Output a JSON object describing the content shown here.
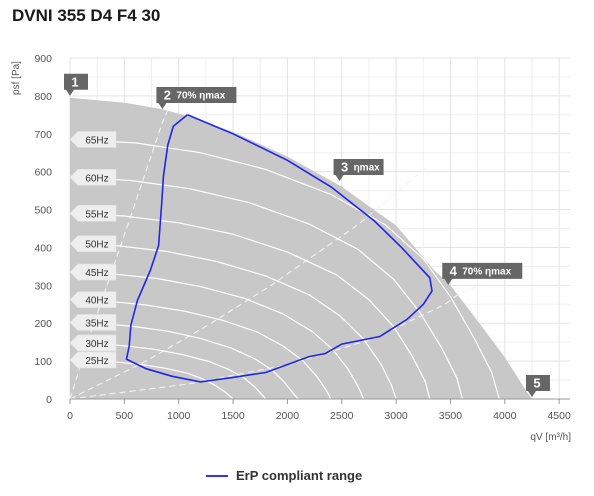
{
  "title": "DVNI 355 D4 F4 30",
  "legend_label": "ErP compliant range",
  "colors": {
    "envelope": "#c8c8c8",
    "grid": "#e3e3e3",
    "frequency_curves": "#ffffff",
    "efficiency_lines": "#f2f2f2",
    "erp": "#2424e6",
    "point_label": "#666666"
  },
  "chart_data": {
    "type": "line",
    "xlabel": "qV [m³/h]",
    "ylabel": "psf [Pa]",
    "xlim": [
      0,
      4600
    ],
    "ylim": [
      0,
      900
    ],
    "xticks": [
      "0",
      "500",
      "1000",
      "1500",
      "2000",
      "2500",
      "3000",
      "3500",
      "4000",
      "4500"
    ],
    "yticks": [
      "0",
      "100",
      "200",
      "300",
      "400",
      "500",
      "600",
      "700",
      "800",
      "900"
    ],
    "grid": true,
    "legend_position": "bottom-center",
    "envelope_top": [
      [
        0,
        795
      ],
      [
        500,
        782
      ],
      [
        850,
        765
      ],
      [
        1100,
        745
      ],
      [
        1500,
        705
      ],
      [
        2000,
        640
      ],
      [
        2500,
        560
      ],
      [
        3000,
        458
      ],
      [
        3350,
        340
      ],
      [
        3500,
        300
      ],
      [
        3700,
        225
      ],
      [
        4000,
        110
      ],
      [
        4200,
        20
      ],
      [
        4250,
        0
      ]
    ],
    "frequency_curves": [
      {
        "label": "65Hz",
        "values": [
          [
            0,
            685
          ],
          [
            600,
            676
          ],
          [
            1200,
            650
          ],
          [
            1800,
            606
          ],
          [
            2400,
            540
          ],
          [
            2900,
            460
          ],
          [
            3250,
            370
          ],
          [
            3500,
            270
          ],
          [
            3720,
            160
          ],
          [
            3880,
            70
          ],
          [
            3950,
            0
          ]
        ]
      },
      {
        "label": "60Hz",
        "values": [
          [
            0,
            585
          ],
          [
            550,
            577
          ],
          [
            1100,
            555
          ],
          [
            1650,
            518
          ],
          [
            2200,
            462
          ],
          [
            2650,
            395
          ],
          [
            2980,
            315
          ],
          [
            3220,
            228
          ],
          [
            3420,
            135
          ],
          [
            3560,
            55
          ],
          [
            3610,
            0
          ]
        ]
      },
      {
        "label": "55Hz",
        "values": [
          [
            0,
            490
          ],
          [
            500,
            483
          ],
          [
            1000,
            465
          ],
          [
            1500,
            435
          ],
          [
            2000,
            388
          ],
          [
            2450,
            328
          ],
          [
            2750,
            262
          ],
          [
            2980,
            190
          ],
          [
            3150,
            112
          ],
          [
            3270,
            45
          ],
          [
            3310,
            0
          ]
        ]
      },
      {
        "label": "50Hz",
        "values": [
          [
            0,
            410
          ],
          [
            450,
            404
          ],
          [
            900,
            389
          ],
          [
            1350,
            363
          ],
          [
            1800,
            325
          ],
          [
            2200,
            275
          ],
          [
            2480,
            220
          ],
          [
            2700,
            158
          ],
          [
            2860,
            92
          ],
          [
            2960,
            35
          ],
          [
            3000,
            0
          ]
        ]
      },
      {
        "label": "45Hz",
        "values": [
          [
            0,
            335
          ],
          [
            400,
            330
          ],
          [
            800,
            318
          ],
          [
            1200,
            297
          ],
          [
            1600,
            266
          ],
          [
            1950,
            226
          ],
          [
            2230,
            178
          ],
          [
            2420,
            130
          ],
          [
            2560,
            78
          ],
          [
            2660,
            28
          ],
          [
            2700,
            0
          ]
        ]
      },
      {
        "label": "40Hz",
        "values": [
          [
            0,
            262
          ],
          [
            350,
            258
          ],
          [
            700,
            248
          ],
          [
            1050,
            232
          ],
          [
            1400,
            208
          ],
          [
            1720,
            177
          ],
          [
            1960,
            140
          ],
          [
            2140,
            102
          ],
          [
            2270,
            60
          ],
          [
            2360,
            22
          ],
          [
            2400,
            0
          ]
        ]
      },
      {
        "label": "35Hz",
        "values": [
          [
            0,
            202
          ],
          [
            300,
            199
          ],
          [
            600,
            191
          ],
          [
            900,
            179
          ],
          [
            1200,
            160
          ],
          [
            1480,
            135
          ],
          [
            1700,
            106
          ],
          [
            1860,
            76
          ],
          [
            1970,
            45
          ],
          [
            2050,
            16
          ],
          [
            2100,
            0
          ]
        ]
      },
      {
        "label": "30Hz",
        "values": [
          [
            0,
            148
          ],
          [
            260,
            146
          ],
          [
            520,
            140
          ],
          [
            780,
            131
          ],
          [
            1040,
            117
          ],
          [
            1280,
            99
          ],
          [
            1460,
            78
          ],
          [
            1600,
            56
          ],
          [
            1700,
            32
          ],
          [
            1770,
            10
          ],
          [
            1800,
            0
          ]
        ]
      },
      {
        "label": "25Hz",
        "values": [
          [
            0,
            103
          ],
          [
            220,
            101
          ],
          [
            440,
            97
          ],
          [
            660,
            91
          ],
          [
            880,
            81
          ],
          [
            1080,
            68
          ],
          [
            1230,
            52
          ],
          [
            1340,
            35
          ],
          [
            1430,
            18
          ],
          [
            1480,
            5
          ],
          [
            1500,
            0
          ]
        ]
      }
    ],
    "efficiency_lines": [
      [
        [
          0,
          0
        ],
        [
          220,
          200
        ],
        [
          400,
          350
        ],
        [
          580,
          500
        ],
        [
          720,
          620
        ],
        [
          850,
          730
        ],
        [
          910,
          770
        ]
      ],
      [
        [
          0,
          0
        ],
        [
          700,
          100
        ],
        [
          1300,
          200
        ],
        [
          1850,
          300
        ],
        [
          2300,
          390
        ],
        [
          2650,
          460
        ],
        [
          2900,
          520
        ],
        [
          3150,
          580
        ],
        [
          3280,
          610
        ]
      ],
      [
        [
          0,
          0
        ],
        [
          1100,
          40
        ],
        [
          2000,
          90
        ],
        [
          2800,
          160
        ],
        [
          3450,
          250
        ],
        [
          3580,
          278
        ],
        [
          3780,
          302
        ]
      ]
    ],
    "erp_range": [
      [
        1080,
        750
      ],
      [
        950,
        720
      ],
      [
        900,
        670
      ],
      [
        860,
        590
      ],
      [
        845,
        520
      ],
      [
        815,
        405
      ],
      [
        740,
        340
      ],
      [
        620,
        260
      ],
      [
        560,
        195
      ],
      [
        545,
        140
      ],
      [
        520,
        105
      ],
      [
        700,
        80
      ],
      [
        940,
        60
      ],
      [
        1200,
        45
      ],
      [
        1500,
        57
      ],
      [
        1800,
        70
      ],
      [
        2200,
        112
      ],
      [
        2350,
        120
      ],
      [
        2500,
        145
      ],
      [
        2850,
        165
      ],
      [
        3100,
        210
      ],
      [
        3250,
        250
      ],
      [
        3330,
        285
      ],
      [
        3310,
        320
      ],
      [
        3050,
        400
      ],
      [
        2800,
        470
      ],
      [
        2400,
        560
      ],
      [
        2000,
        630
      ],
      [
        1500,
        700
      ],
      [
        1080,
        750
      ]
    ],
    "operating_points": [
      {
        "number": "1",
        "text": "",
        "x": 0,
        "y": 795
      },
      {
        "number": "2",
        "text": "70% ηmax",
        "x": 850,
        "y": 760
      },
      {
        "number": "3",
        "text": "ηmax",
        "x": 2480,
        "y": 570
      },
      {
        "number": "4",
        "text": "70% ηmax",
        "x": 3480,
        "y": 296
      },
      {
        "number": "5",
        "text": "",
        "x": 4250,
        "y": 0
      }
    ]
  }
}
